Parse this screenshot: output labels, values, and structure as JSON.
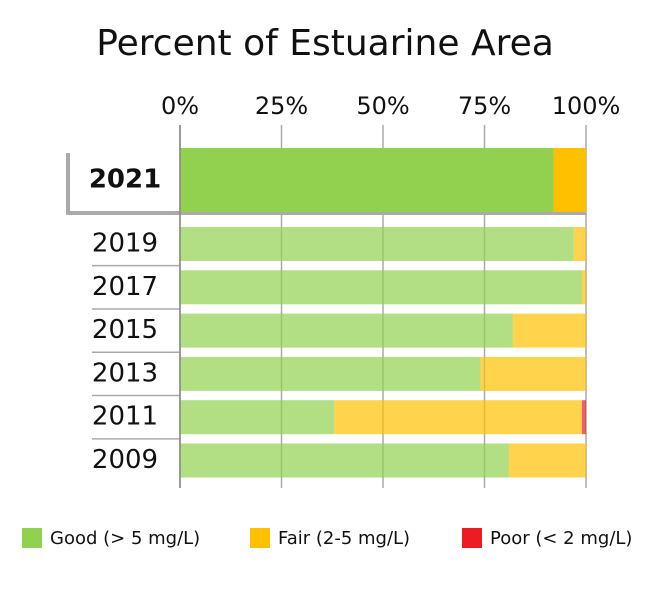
{
  "chart_data": {
    "type": "bar",
    "orientation": "horizontal",
    "stacked": true,
    "title": "Percent of Estuarine Area",
    "categories": [
      "2021",
      "2019",
      "2017",
      "2015",
      "2013",
      "2011",
      "2009"
    ],
    "series": [
      {
        "name": "Good (> 5 mg/L)",
        "color": "#92d050",
        "values": [
          92,
          97,
          99,
          82,
          74,
          38,
          81
        ]
      },
      {
        "name": "Fair (2-5 mg/L)",
        "color": "#ffc000",
        "values": [
          8,
          3,
          1,
          18,
          26,
          61,
          19
        ]
      },
      {
        "name": "Poor (< 2 mg/L)",
        "color": "#ed1c24",
        "values": [
          0,
          0,
          0,
          0,
          0,
          1,
          0
        ]
      }
    ],
    "xlim": [
      0,
      100
    ],
    "xticks": [
      {
        "value": 0,
        "label": "0%"
      },
      {
        "value": 25,
        "label": "25%"
      },
      {
        "value": 50,
        "label": "50%"
      },
      {
        "value": 75,
        "label": "75%"
      },
      {
        "value": 100,
        "label": "100%"
      }
    ],
    "grid": true,
    "legend": "bottom"
  }
}
